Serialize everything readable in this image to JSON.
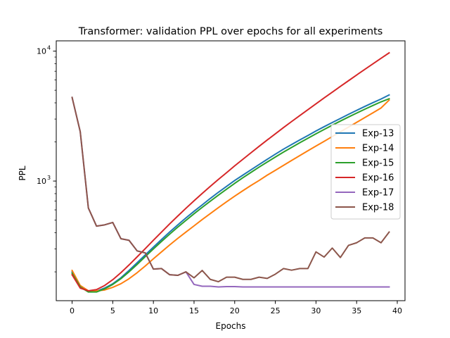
{
  "chart_data": {
    "type": "line",
    "title": "Transformer: validation PPL over epochs for all experiments",
    "xlabel": "Epochs",
    "ylabel": "PPL",
    "yscale": "log",
    "xlim": [
      -1.95,
      40.95
    ],
    "ylim": [
      120,
      12000
    ],
    "xticks": [
      0,
      5,
      10,
      15,
      20,
      25,
      30,
      35,
      40
    ],
    "yticks": [
      {
        "value": 1000,
        "base": "10",
        "exp": "3"
      },
      {
        "value": 10000,
        "base": "10",
        "exp": "4"
      }
    ],
    "grid": false,
    "legend_position": "center-right",
    "x": [
      0,
      1,
      2,
      3,
      4,
      5,
      6,
      7,
      8,
      9,
      10,
      11,
      12,
      13,
      14,
      15,
      16,
      17,
      18,
      19,
      20,
      21,
      22,
      23,
      24,
      25,
      26,
      27,
      28,
      29,
      30,
      31,
      32,
      33,
      34,
      35,
      36,
      37,
      38,
      39
    ],
    "series": [
      {
        "name": "Exp-13",
        "color": "#1f77b4",
        "values": [
          200,
          155,
          142,
          142,
          150,
          162,
          180,
          205,
          235,
          270,
          310,
          355,
          405,
          460,
          520,
          585,
          655,
          735,
          820,
          910,
          1010,
          1110,
          1220,
          1340,
          1470,
          1610,
          1760,
          1910,
          2070,
          2240,
          2430,
          2620,
          2820,
          3030,
          3260,
          3500,
          3750,
          4010,
          4280,
          4600
        ]
      },
      {
        "name": "Exp-14",
        "color": "#ff7f0e",
        "values": [
          205,
          157,
          143,
          143,
          145,
          152,
          162,
          177,
          197,
          222,
          252,
          285,
          322,
          362,
          405,
          452,
          505,
          562,
          625,
          692,
          765,
          842,
          925,
          1010,
          1110,
          1210,
          1320,
          1440,
          1570,
          1710,
          1860,
          2020,
          2200,
          2390,
          2600,
          2830,
          3080,
          3350,
          3650,
          4200
        ]
      },
      {
        "name": "Exp-15",
        "color": "#2ca02c",
        "values": [
          195,
          153,
          140,
          140,
          148,
          160,
          177,
          200,
          228,
          262,
          300,
          343,
          390,
          442,
          498,
          560,
          627,
          700,
          780,
          865,
          960,
          1060,
          1165,
          1280,
          1400,
          1530,
          1670,
          1815,
          1970,
          2135,
          2310,
          2495,
          2690,
          2895,
          3110,
          3335,
          3570,
          3815,
          4070,
          4300
        ]
      },
      {
        "name": "Exp-16",
        "color": "#d62728",
        "values": [
          190,
          150,
          143,
          146,
          157,
          174,
          197,
          226,
          261,
          302,
          350,
          405,
          468,
          538,
          617,
          705,
          802,
          910,
          1030,
          1160,
          1310,
          1470,
          1650,
          1850,
          2070,
          2310,
          2580,
          2870,
          3190,
          3540,
          3930,
          4360,
          4830,
          5350,
          5920,
          6550,
          7230,
          7980,
          8800,
          9700
        ]
      },
      {
        "name": "Exp-17",
        "color": "#9467bd",
        "values": [
          4400,
          2400,
          620,
          450,
          460,
          480,
          360,
          350,
          290,
          280,
          210,
          212,
          190,
          188,
          200,
          160,
          155,
          155,
          153,
          154,
          154,
          153,
          153,
          153,
          153,
          153,
          153,
          153,
          153,
          153,
          153,
          153,
          153,
          153,
          153,
          153,
          153,
          153,
          153,
          153
        ]
      },
      {
        "name": "Exp-18",
        "color": "#8c564b",
        "values": [
          4400,
          2400,
          620,
          450,
          460,
          480,
          360,
          350,
          290,
          280,
          210,
          212,
          190,
          188,
          200,
          180,
          205,
          175,
          168,
          182,
          182,
          175,
          175,
          182,
          178,
          192,
          212,
          206,
          212,
          212,
          285,
          260,
          305,
          258,
          320,
          335,
          365,
          365,
          335,
          405
        ]
      }
    ]
  }
}
